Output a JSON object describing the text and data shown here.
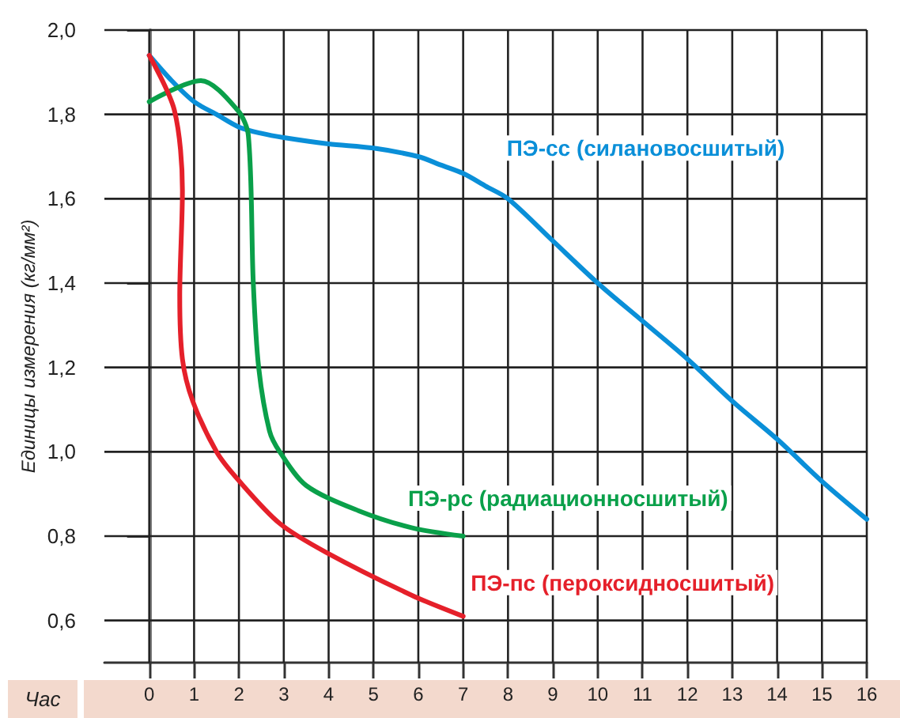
{
  "chart_data": {
    "type": "line",
    "xlabel": "Час",
    "ylabel": "Единицы измерения (кг/мм²)",
    "xlim": [
      -1,
      16
    ],
    "xticks": [
      0,
      1,
      2,
      3,
      4,
      5,
      6,
      7,
      8,
      9,
      10,
      11,
      12,
      13,
      14,
      15,
      16
    ],
    "ylim": [
      0.5,
      2.0
    ],
    "yticks": [
      {
        "value": 0.6,
        "label": "0,6"
      },
      {
        "value": 0.8,
        "label": "0,8"
      },
      {
        "value": 1.0,
        "label": "1,0"
      },
      {
        "value": 1.2,
        "label": "1,2"
      },
      {
        "value": 1.4,
        "label": "1,4"
      },
      {
        "value": 1.6,
        "label": "1,6"
      },
      {
        "value": 1.8,
        "label": "1,8"
      },
      {
        "value": 2.0,
        "label": "2,0"
      }
    ],
    "grid": true,
    "marker": "none",
    "line_style": "solid",
    "legend": false,
    "series": [
      {
        "name": "ПЭ-сс (силановосшитый)",
        "color": "#0a8fd8",
        "x": [
          0,
          0.5,
          1,
          1.5,
          2,
          2.5,
          3,
          4,
          5,
          6,
          6.5,
          7,
          7.5,
          8,
          9,
          10,
          11,
          12,
          13,
          14,
          15,
          16
        ],
        "values": [
          1.94,
          1.88,
          1.83,
          1.8,
          1.77,
          1.755,
          1.745,
          1.73,
          1.72,
          1.7,
          1.68,
          1.66,
          1.63,
          1.6,
          1.5,
          1.4,
          1.31,
          1.22,
          1.12,
          1.03,
          0.93,
          0.84
        ]
      },
      {
        "name": "ПЭ-рс (радиационносшитый)",
        "color": "#0aa04a",
        "x": [
          0,
          1.15,
          1.97,
          2.21,
          2.32,
          2.44,
          2.68,
          2.91,
          3.5,
          4.67,
          5.85,
          7
        ],
        "values": [
          1.83,
          1.88,
          1.81,
          1.75,
          1.4,
          1.2,
          1.05,
          1.0,
          0.92,
          0.86,
          0.82,
          0.8
        ]
      },
      {
        "name": "ПЭ-пс (пероксидносшитый)",
        "color": "#e5202a",
        "x": [
          0,
          0.56,
          0.74,
          0.68,
          0.74,
          0.97,
          1.5,
          1.97,
          2.91,
          3.97,
          5.85,
          7
        ],
        "values": [
          1.94,
          1.81,
          1.62,
          1.37,
          1.22,
          1.12,
          1.0,
          0.935,
          0.83,
          0.76,
          0.66,
          0.61
        ]
      }
    ]
  }
}
